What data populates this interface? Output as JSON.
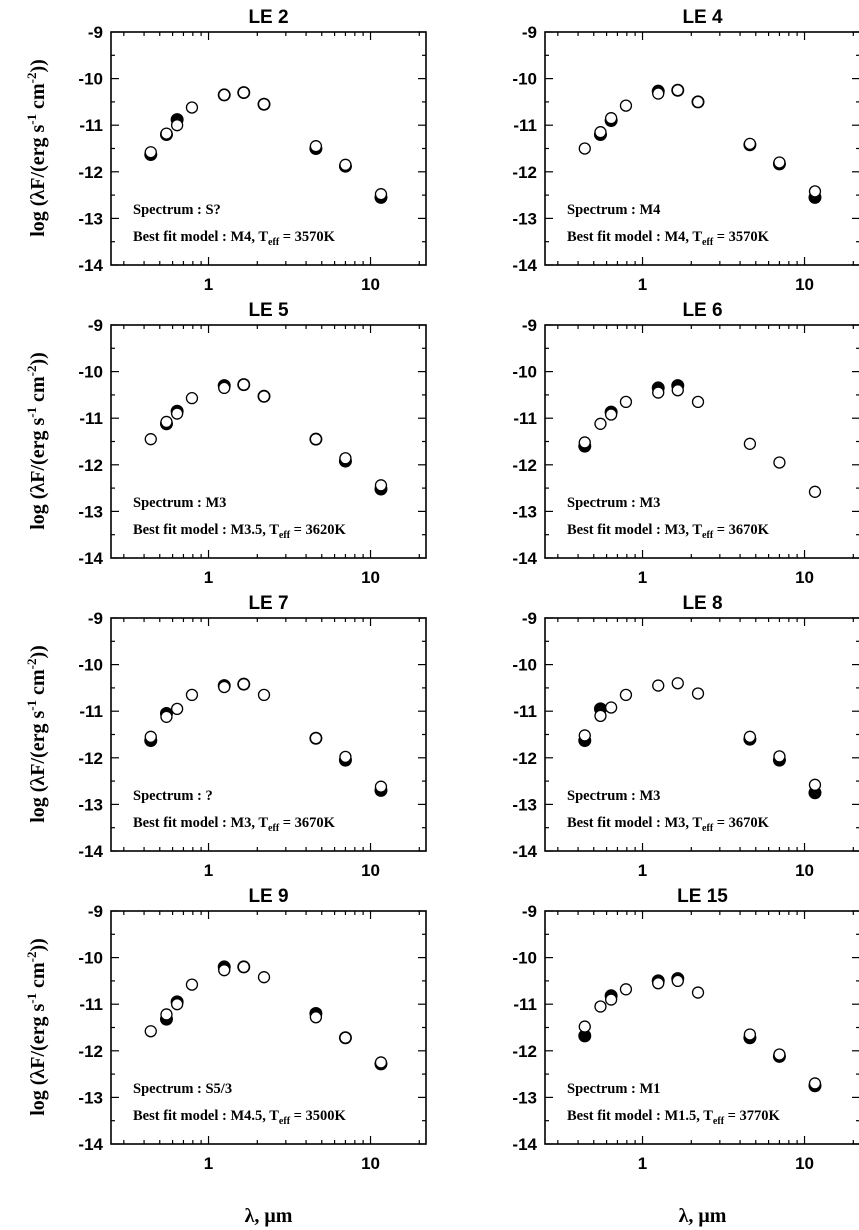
{
  "figure": {
    "xlabel": "λ, μm",
    "ylabel_pre": "log (λF/(erg s",
    "ylabel_sup1": "-1",
    "ylabel_mid": " cm",
    "ylabel_sup2": "-2",
    "ylabel_post": "))",
    "annotation_spectrum_prefix": "Spectrum : ",
    "annotation_model_prefix": "Best fit model : ",
    "annotation_teff_T": "T",
    "annotation_teff_sub": "eff",
    "annotation_teff_eq": " = "
  },
  "chart_data": [
    {
      "type": "scatter",
      "title": "LE 2",
      "xlabel": "λ, μm",
      "ylabel": "log (λF/(erg s-1 cm-2))",
      "xscale": "log",
      "xlim": [
        0.25,
        22
      ],
      "ylim": [
        -14,
        -9
      ],
      "x_ticks": [
        "1",
        "10"
      ],
      "y_ticks": [
        "-9",
        "-10",
        "-11",
        "-12",
        "-13",
        "-14"
      ],
      "spectrum": "S?",
      "model": "M4, ",
      "teff": "3570K",
      "series": [
        {
          "marker": "filled",
          "points": [
            [
              0.44,
              -11.63
            ],
            [
              0.55,
              -11.2
            ],
            [
              0.64,
              -10.88
            ],
            [
              1.25,
              -10.35
            ],
            [
              1.65,
              -10.3
            ],
            [
              2.2,
              -10.55
            ],
            [
              4.6,
              -11.5
            ],
            [
              7.0,
              -11.88
            ],
            [
              11.6,
              -12.55
            ]
          ]
        },
        {
          "marker": "open",
          "points": [
            [
              0.44,
              -11.58
            ],
            [
              0.55,
              -11.18
            ],
            [
              0.64,
              -11.0
            ],
            [
              0.79,
              -10.62
            ],
            [
              1.25,
              -10.35
            ],
            [
              1.65,
              -10.3
            ],
            [
              2.2,
              -10.55
            ],
            [
              4.6,
              -11.45
            ],
            [
              7.0,
              -11.85
            ],
            [
              11.6,
              -12.48
            ]
          ]
        }
      ]
    },
    {
      "type": "scatter",
      "title": "LE 4",
      "xlabel": "λ, μm",
      "ylabel": "log (λF/(erg s-1 cm-2))",
      "xscale": "log",
      "xlim": [
        0.25,
        22
      ],
      "ylim": [
        -14,
        -9
      ],
      "x_ticks": [
        "1",
        "10"
      ],
      "y_ticks": [
        "-9",
        "-10",
        "-11",
        "-12",
        "-13",
        "-14"
      ],
      "spectrum": "M4",
      "model": "M4, ",
      "teff": "3570K",
      "series": [
        {
          "marker": "filled",
          "points": [
            [
              0.55,
              -11.2
            ],
            [
              0.64,
              -10.9
            ],
            [
              1.25,
              -10.27
            ],
            [
              1.65,
              -10.25
            ],
            [
              2.2,
              -10.5
            ],
            [
              4.6,
              -11.42
            ],
            [
              7.0,
              -11.83
            ],
            [
              11.6,
              -12.55
            ]
          ]
        },
        {
          "marker": "open",
          "points": [
            [
              0.44,
              -11.5
            ],
            [
              0.55,
              -11.15
            ],
            [
              0.64,
              -10.85
            ],
            [
              0.79,
              -10.58
            ],
            [
              1.25,
              -10.32
            ],
            [
              1.65,
              -10.25
            ],
            [
              2.2,
              -10.5
            ],
            [
              4.6,
              -11.4
            ],
            [
              7.0,
              -11.8
            ],
            [
              11.6,
              -12.42
            ]
          ]
        }
      ]
    },
    {
      "type": "scatter",
      "title": "LE 5",
      "xlabel": "λ, μm",
      "ylabel": "log (λF/(erg s-1 cm-2))",
      "xscale": "log",
      "xlim": [
        0.25,
        22
      ],
      "ylim": [
        -14,
        -9
      ],
      "x_ticks": [
        "1",
        "10"
      ],
      "y_ticks": [
        "-9",
        "-10",
        "-11",
        "-12",
        "-13",
        "-14"
      ],
      "spectrum": "M3",
      "model": "M3.5, ",
      "teff": "3620K",
      "series": [
        {
          "marker": "filled",
          "points": [
            [
              0.55,
              -11.12
            ],
            [
              0.64,
              -10.85
            ],
            [
              1.25,
              -10.3
            ],
            [
              1.65,
              -10.28
            ],
            [
              2.2,
              -10.53
            ],
            [
              4.6,
              -11.45
            ],
            [
              7.0,
              -11.92
            ],
            [
              11.6,
              -12.52
            ]
          ]
        },
        {
          "marker": "open",
          "points": [
            [
              0.44,
              -11.45
            ],
            [
              0.55,
              -11.08
            ],
            [
              0.64,
              -10.9
            ],
            [
              0.79,
              -10.57
            ],
            [
              1.25,
              -10.35
            ],
            [
              1.65,
              -10.28
            ],
            [
              2.2,
              -10.53
            ],
            [
              4.6,
              -11.45
            ],
            [
              7.0,
              -11.86
            ],
            [
              11.6,
              -12.44
            ]
          ]
        }
      ]
    },
    {
      "type": "scatter",
      "title": "LE 6",
      "xlabel": "λ, μm",
      "ylabel": "log (λF/(erg s-1 cm-2))",
      "xscale": "log",
      "xlim": [
        0.25,
        22
      ],
      "ylim": [
        -14,
        -9
      ],
      "x_ticks": [
        "1",
        "10"
      ],
      "y_ticks": [
        "-9",
        "-10",
        "-11",
        "-12",
        "-13",
        "-14"
      ],
      "spectrum": "M3",
      "model": "M3, ",
      "teff": "3670K",
      "series": [
        {
          "marker": "filled",
          "points": [
            [
              0.44,
              -11.6
            ],
            [
              0.64,
              -10.87
            ],
            [
              1.25,
              -10.35
            ],
            [
              1.65,
              -10.3
            ]
          ]
        },
        {
          "marker": "open",
          "points": [
            [
              0.44,
              -11.52
            ],
            [
              0.55,
              -11.12
            ],
            [
              0.64,
              -10.92
            ],
            [
              0.79,
              -10.65
            ],
            [
              1.25,
              -10.45
            ],
            [
              1.65,
              -10.4
            ],
            [
              2.2,
              -10.65
            ],
            [
              4.6,
              -11.55
            ],
            [
              7.0,
              -11.95
            ],
            [
              11.6,
              -12.58
            ]
          ]
        }
      ]
    },
    {
      "type": "scatter",
      "title": "LE 7",
      "xlabel": "λ, μm",
      "ylabel": "log (λF/(erg s-1 cm-2))",
      "xscale": "log",
      "xlim": [
        0.25,
        22
      ],
      "ylim": [
        -14,
        -9
      ],
      "x_ticks": [
        "1",
        "10"
      ],
      "y_ticks": [
        "-9",
        "-10",
        "-11",
        "-12",
        "-13",
        "-14"
      ],
      "spectrum": "?",
      "model": "M3, ",
      "teff": "3670K",
      "series": [
        {
          "marker": "filled",
          "points": [
            [
              0.44,
              -11.63
            ],
            [
              0.55,
              -11.05
            ],
            [
              1.25,
              -10.45
            ],
            [
              1.65,
              -10.42
            ],
            [
              4.6,
              -11.58
            ],
            [
              7.0,
              -12.05
            ],
            [
              11.6,
              -12.7
            ]
          ]
        },
        {
          "marker": "open",
          "points": [
            [
              0.44,
              -11.55
            ],
            [
              0.55,
              -11.12
            ],
            [
              0.64,
              -10.95
            ],
            [
              0.79,
              -10.65
            ],
            [
              1.25,
              -10.48
            ],
            [
              1.65,
              -10.42
            ],
            [
              2.2,
              -10.65
            ],
            [
              4.6,
              -11.58
            ],
            [
              7.0,
              -11.98
            ],
            [
              11.6,
              -12.62
            ]
          ]
        }
      ]
    },
    {
      "type": "scatter",
      "title": "LE 8",
      "xlabel": "λ, μm",
      "ylabel": "log (λF/(erg s-1 cm-2))",
      "xscale": "log",
      "xlim": [
        0.25,
        22
      ],
      "ylim": [
        -14,
        -9
      ],
      "x_ticks": [
        "1",
        "10"
      ],
      "y_ticks": [
        "-9",
        "-10",
        "-11",
        "-12",
        "-13",
        "-14"
      ],
      "spectrum": "M3",
      "model": "M3, ",
      "teff": "3670K",
      "series": [
        {
          "marker": "filled",
          "points": [
            [
              0.44,
              -11.63
            ],
            [
              0.55,
              -10.95
            ],
            [
              4.6,
              -11.6
            ],
            [
              7.0,
              -12.05
            ],
            [
              11.6,
              -12.75
            ]
          ]
        },
        {
          "marker": "open",
          "points": [
            [
              0.44,
              -11.52
            ],
            [
              0.55,
              -11.1
            ],
            [
              0.64,
              -10.92
            ],
            [
              0.79,
              -10.65
            ],
            [
              1.25,
              -10.45
            ],
            [
              1.65,
              -10.4
            ],
            [
              2.2,
              -10.62
            ],
            [
              4.6,
              -11.55
            ],
            [
              7.0,
              -11.97
            ],
            [
              11.6,
              -12.58
            ]
          ]
        }
      ]
    },
    {
      "type": "scatter",
      "title": "LE 9",
      "xlabel": "λ, μm",
      "ylabel": "log (λF/(erg s-1 cm-2))",
      "xscale": "log",
      "xlim": [
        0.25,
        22
      ],
      "ylim": [
        -14,
        -9
      ],
      "x_ticks": [
        "1",
        "10"
      ],
      "y_ticks": [
        "-9",
        "-10",
        "-11",
        "-12",
        "-13",
        "-14"
      ],
      "spectrum": "S5/3",
      "model": "M4.5, ",
      "teff": "3500K",
      "series": [
        {
          "marker": "filled",
          "points": [
            [
              0.55,
              -11.32
            ],
            [
              0.64,
              -10.95
            ],
            [
              1.25,
              -10.2
            ],
            [
              1.65,
              -10.2
            ],
            [
              4.6,
              -11.2
            ],
            [
              7.0,
              -11.72
            ],
            [
              11.6,
              -12.28
            ]
          ]
        },
        {
          "marker": "open",
          "points": [
            [
              0.44,
              -11.58
            ],
            [
              0.55,
              -11.22
            ],
            [
              0.64,
              -11.0
            ],
            [
              0.79,
              -10.58
            ],
            [
              1.25,
              -10.27
            ],
            [
              1.65,
              -10.2
            ],
            [
              2.2,
              -10.42
            ],
            [
              4.6,
              -11.28
            ],
            [
              7.0,
              -11.72
            ],
            [
              11.6,
              -12.25
            ]
          ]
        }
      ]
    },
    {
      "type": "scatter",
      "title": "LE 15",
      "xlabel": "λ, μm",
      "ylabel": "log (λF/(erg s-1 cm-2))",
      "xscale": "log",
      "xlim": [
        0.25,
        22
      ],
      "ylim": [
        -14,
        -9
      ],
      "x_ticks": [
        "1",
        "10"
      ],
      "y_ticks": [
        "-9",
        "-10",
        "-11",
        "-12",
        "-13",
        "-14"
      ],
      "spectrum": "M1",
      "model": "M1.5, ",
      "teff": "3770K",
      "series": [
        {
          "marker": "filled",
          "points": [
            [
              0.44,
              -11.68
            ],
            [
              0.64,
              -10.82
            ],
            [
              1.25,
              -10.5
            ],
            [
              1.65,
              -10.45
            ],
            [
              4.6,
              -11.72
            ],
            [
              7.0,
              -12.12
            ],
            [
              11.6,
              -12.75
            ]
          ]
        },
        {
          "marker": "open",
          "points": [
            [
              0.44,
              -11.48
            ],
            [
              0.55,
              -11.05
            ],
            [
              0.64,
              -10.9
            ],
            [
              0.79,
              -10.68
            ],
            [
              1.25,
              -10.55
            ],
            [
              1.65,
              -10.5
            ],
            [
              2.2,
              -10.75
            ],
            [
              4.6,
              -11.65
            ],
            [
              7.0,
              -12.08
            ],
            [
              11.6,
              -12.7
            ]
          ]
        }
      ]
    }
  ]
}
